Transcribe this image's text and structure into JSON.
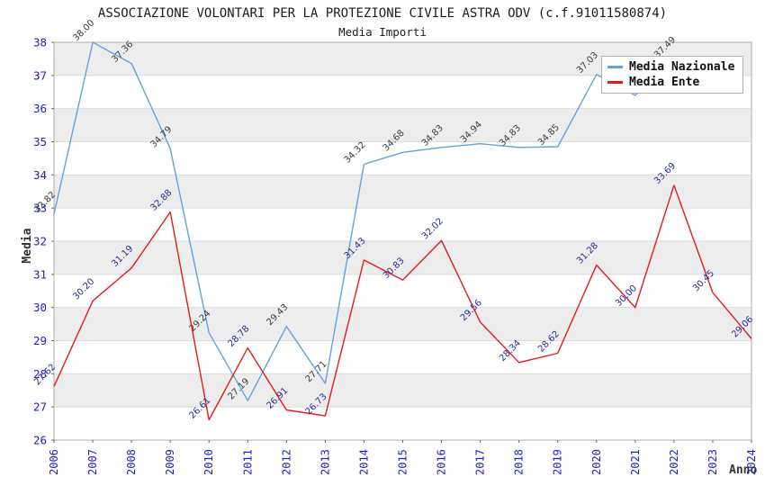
{
  "header": {
    "title": "ASSOCIAZIONE VOLONTARI PER LA PROTEZIONE CIVILE ASTRA ODV (c.f.91011580874)",
    "subtitle": "Media Importi"
  },
  "colors": {
    "tick_label": "#2020c8",
    "band_fill": "#ededed",
    "grid_line": "#dbdbdb",
    "plot_border": "#adadad",
    "axis_tick": "#666666",
    "text": "#1c1c1c"
  },
  "chart_data": {
    "type": "line",
    "title": "ASSOCIAZIONE VOLONTARI PER LA PROTEZIONE CIVILE ASTRA ODV (c.f.91011580874)",
    "subtitle": "Media Importi",
    "xlabel": "Anno",
    "ylabel": "Media",
    "x": [
      2006,
      2007,
      2008,
      2009,
      2010,
      2011,
      2012,
      2013,
      2014,
      2015,
      2016,
      2017,
      2018,
      2019,
      2020,
      2021,
      2022,
      2023,
      2024
    ],
    "ylim": [
      26,
      38
    ],
    "yticks": [
      26,
      27,
      28,
      29,
      30,
      31,
      32,
      33,
      34,
      35,
      36,
      37,
      38
    ],
    "grid": "horizontal",
    "background_bands": "alternating-gray",
    "legend_position": "top-right",
    "series": [
      {
        "name": "Media Nazionale",
        "color": "#64a0e1",
        "label_color": "#3b3b3b",
        "values": [
          32.82,
          38.0,
          37.36,
          34.79,
          29.24,
          27.19,
          29.43,
          27.71,
          34.32,
          34.68,
          34.83,
          34.94,
          34.83,
          34.85,
          37.03,
          36.4,
          37.49,
          null,
          null
        ],
        "hidden_label_years": [
          2021
        ]
      },
      {
        "name": "Media Ente",
        "color": "#e51b1b",
        "label_color": "#2b2b9c",
        "values": [
          27.62,
          30.2,
          31.19,
          32.88,
          26.61,
          28.78,
          26.91,
          26.73,
          31.43,
          30.83,
          32.02,
          29.56,
          28.34,
          28.62,
          31.28,
          30.0,
          33.69,
          30.45,
          29.06
        ],
        "hidden_label_years": []
      }
    ]
  }
}
